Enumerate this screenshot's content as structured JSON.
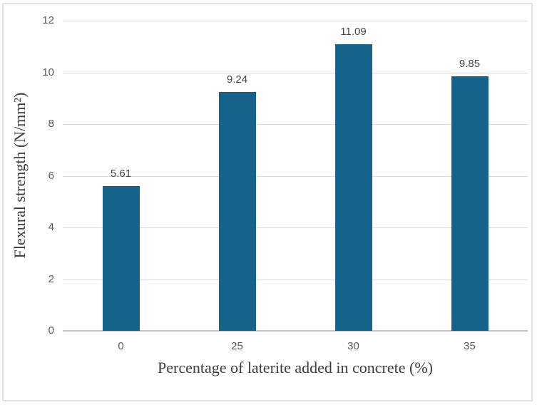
{
  "chart_data": {
    "type": "bar",
    "title": "",
    "xlabel": "Percentage of laterite added in concrete (%)",
    "ylabel": "Flexural strength (N/mm²)",
    "categories": [
      "0",
      "25",
      "30",
      "35"
    ],
    "values": [
      5.61,
      9.24,
      11.09,
      9.85
    ],
    "value_labels": [
      "5.61",
      "9.24",
      "11.09",
      "9.85"
    ],
    "ylim": [
      0,
      12
    ],
    "yticks": [
      0,
      2,
      4,
      6,
      8,
      10,
      12
    ],
    "grid": true,
    "legend": false,
    "colors": {
      "bar": "#15638B",
      "gridline": "#d9d9d9",
      "axis_line": "#c2c2c2",
      "tick_label": "#595959",
      "value_label": "#474747",
      "axis_title": "#3d3d3d"
    }
  }
}
